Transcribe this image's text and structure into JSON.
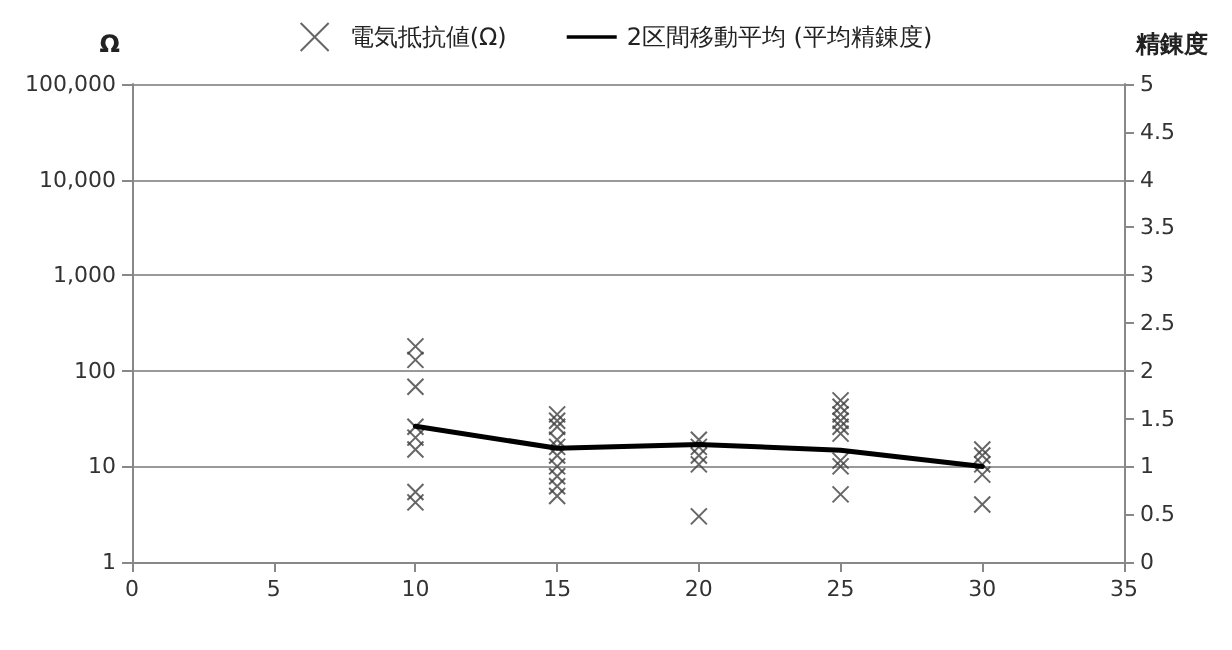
{
  "chart_data": {
    "type": "scatter",
    "ylabel": "Ω",
    "y2label": "精錬度",
    "xlim": [
      0,
      35
    ],
    "xticks": [
      0,
      5,
      10,
      15,
      20,
      25,
      30,
      35
    ],
    "ylim": [
      1,
      100000
    ],
    "yticks": [
      1,
      10,
      100,
      {
        "value": 1000,
        "label": "1,000"
      },
      {
        "value": 10000,
        "label": "10,000"
      },
      {
        "value": 100000,
        "label": "100,000"
      }
    ],
    "y2lim": [
      0,
      5
    ],
    "y2ticks": [
      0,
      0.5,
      1,
      1.5,
      2,
      2.5,
      3,
      3.5,
      4,
      4.5,
      5
    ],
    "log": "y",
    "grid": "y",
    "legend": "top",
    "series": [
      {
        "name": "電気抵抗値(Ω)",
        "type": "scatter",
        "marker": "cross",
        "color": "#404040",
        "x": [
          10,
          10,
          10,
          10,
          10,
          10,
          10,
          10,
          15,
          15,
          15,
          15,
          15,
          15,
          15,
          15,
          15,
          15,
          20,
          20,
          20,
          20,
          20,
          25,
          25,
          25,
          25,
          25,
          25,
          25,
          25,
          25,
          30,
          30,
          30,
          30,
          30
        ],
        "values": [
          180,
          130,
          68,
          26,
          20,
          15,
          5.4,
          4.2,
          35,
          30,
          26,
          19,
          16,
          13,
          10,
          7.9,
          6.2,
          4.9,
          19,
          16,
          13,
          10.5,
          3,
          49,
          42,
          35,
          30,
          26,
          22,
          11.5,
          10,
          5.1,
          15,
          13,
          10.5,
          8.2,
          4
        ]
      },
      {
        "name": "2区間移動平均 (平均精錬度)",
        "type": "line",
        "axis": "y2",
        "marker": "none",
        "color": "#000000",
        "x": [
          10,
          15,
          20,
          25,
          30
        ],
        "values": [
          1.42,
          1.19,
          1.23,
          1.17,
          1.0
        ]
      }
    ]
  }
}
